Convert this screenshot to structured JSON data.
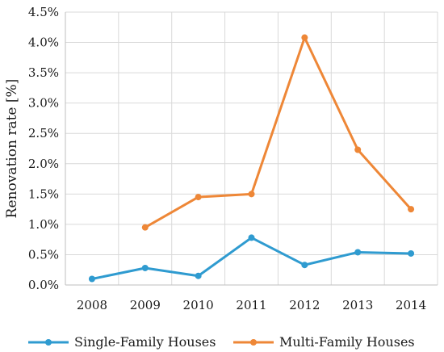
{
  "chart_data": {
    "type": "line",
    "x": [
      "2008",
      "2009",
      "2010",
      "2011",
      "2012",
      "2013",
      "2014"
    ],
    "ylabel": "Renovation rate [%]",
    "xlabel": "",
    "ylim": [
      0,
      4.5
    ],
    "yticks": [
      "0.0%",
      "0.5%",
      "1.0%",
      "1.5%",
      "2.0%",
      "2.5%",
      "3.0%",
      "3.5%",
      "4.0%",
      "4.5%"
    ],
    "grid": true,
    "legend_position": "bottom",
    "series": [
      {
        "name": "Single-Family Houses",
        "color": "#2f9bd0",
        "x_offset": "before-tick",
        "values": [
          0.1,
          0.28,
          0.15,
          0.78,
          0.33,
          0.54,
          0.52
        ]
      },
      {
        "name": "Multi-Family Houses",
        "color": "#ee8737",
        "x_offset": "before-tick",
        "values": [
          null,
          0.95,
          1.45,
          1.5,
          4.08,
          2.23,
          1.25
        ]
      }
    ]
  }
}
